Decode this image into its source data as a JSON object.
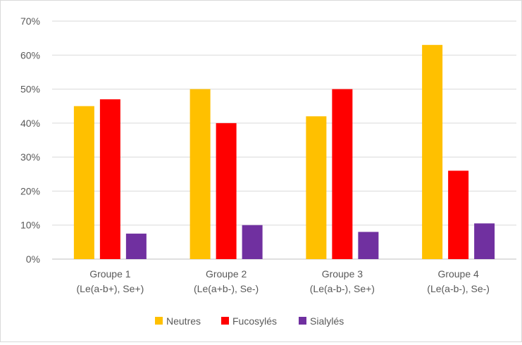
{
  "chart_data": {
    "type": "bar",
    "categories": [
      [
        "Groupe 1",
        "(Le(a-b+), Se+)"
      ],
      [
        "Groupe 2",
        "(Le(a+b-), Se-)"
      ],
      [
        "Groupe 3",
        "(Le(a-b-), Se+)"
      ],
      [
        "Groupe 4",
        "(Le(a-b-), Se-)"
      ]
    ],
    "series": [
      {
        "name": "Neutres",
        "color": "#FFC000",
        "values": [
          45,
          50,
          42,
          63
        ]
      },
      {
        "name": "Fucosylés",
        "color": "#FF0000",
        "values": [
          47,
          40,
          50,
          26
        ]
      },
      {
        "name": "Sialylés",
        "color": "#7030A0",
        "values": [
          7.5,
          10,
          8,
          10.5
        ]
      }
    ],
    "ylim": [
      0,
      70
    ],
    "yticks": [
      "0%",
      "10%",
      "20%",
      "30%",
      "40%",
      "50%",
      "60%",
      "70%"
    ],
    "ytick_values": [
      0,
      10,
      20,
      30,
      40,
      50,
      60,
      70
    ],
    "grid": true,
    "legend_position": "bottom"
  }
}
